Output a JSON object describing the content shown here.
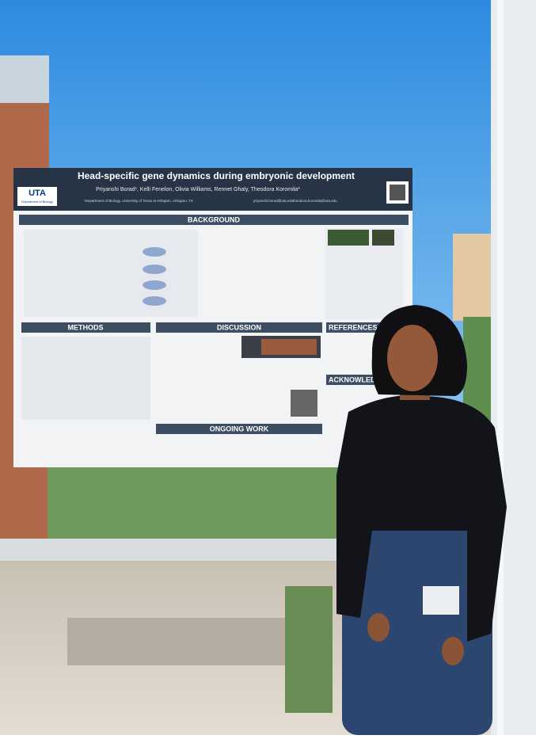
{
  "poster": {
    "title": "Head-specific gene dynamics during embryonic development",
    "authors": "Priyanshi Borad¹, Kelli Fenelon, Olivia Williams, Rennet Ghaly, Theodora Koromila*",
    "affiliation": "¹Department of Biology, University of Texas at Arlington, Arlington, TX",
    "emails": [
      "priyanshi.borad@uta.edu",
      "theodora.koromila@uta.edu"
    ],
    "logo": "UTA",
    "logo_subtitle": "Department of Biology",
    "sections": {
      "background": "BACKGROUND",
      "methods": "METHODS",
      "discussion": "DISCUSSION",
      "references": "REFERENCES",
      "acknowledgements": "ACKNOWLEDG",
      "ongoing_work": "ONGOING WORK"
    }
  }
}
